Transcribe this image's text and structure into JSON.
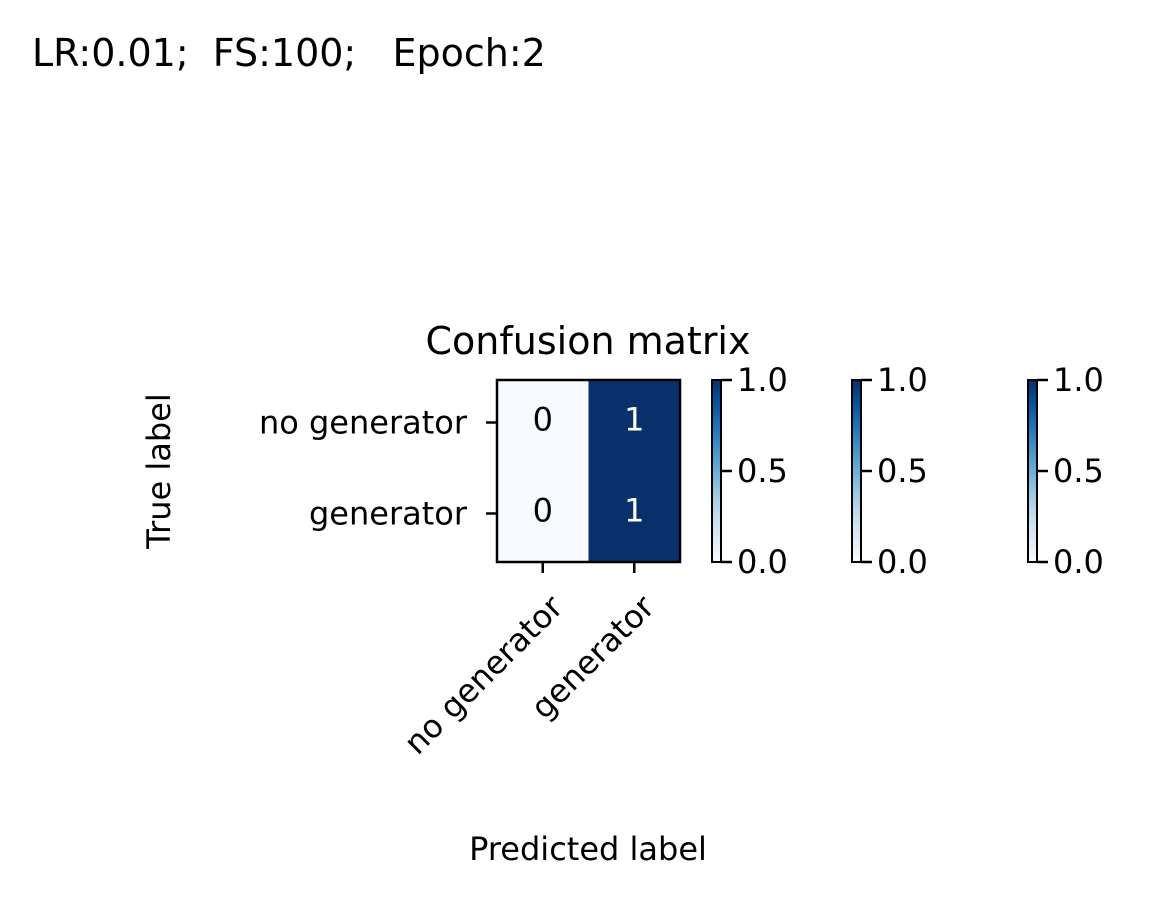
{
  "figure": {
    "suptitle": "LR:0.01;  FS:100;   Epoch:2"
  },
  "chart_data": {
    "type": "heatmap",
    "title": "Confusion matrix",
    "xlabel": "Predicted label",
    "ylabel": "True label",
    "x_categories": [
      "no generator",
      "generator"
    ],
    "y_categories": [
      "no generator",
      "generator"
    ],
    "values": [
      [
        0,
        1
      ],
      [
        0,
        1
      ]
    ],
    "cell_labels": [
      [
        "0",
        "1"
      ],
      [
        "0",
        "1"
      ]
    ],
    "colormap": "Blues",
    "color_low": "#f7fbff",
    "color_high": "#08306b",
    "colorbars": [
      {
        "ticks": [
          "0.0",
          "0.5",
          "1.0"
        ],
        "range": [
          0,
          1
        ]
      },
      {
        "ticks": [
          "0.0",
          "0.5",
          "1.0"
        ],
        "range": [
          0,
          1
        ]
      },
      {
        "ticks": [
          "0.0",
          "0.5",
          "1.0"
        ],
        "range": [
          0,
          1
        ]
      }
    ]
  }
}
